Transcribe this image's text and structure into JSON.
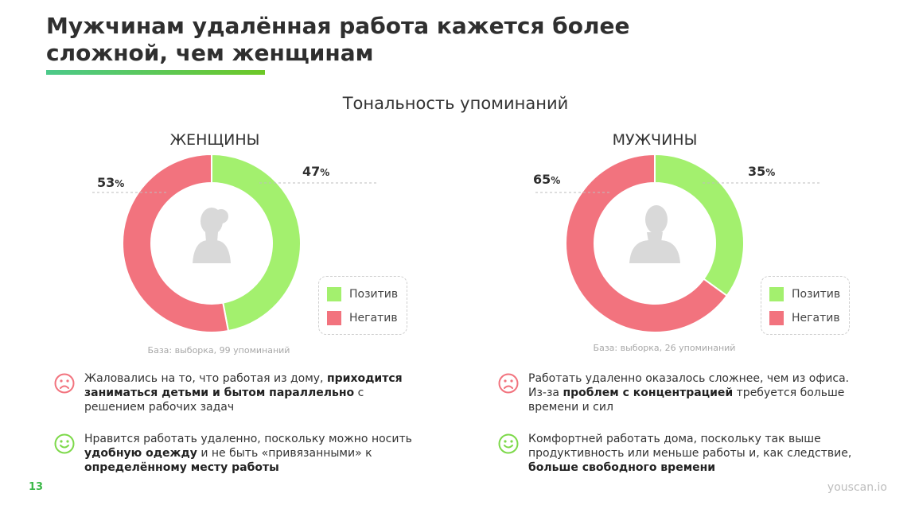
{
  "title": "Мужчинам удалённая работа кажется более сложной, чем женщинам",
  "chart_heading": "Тональность упоминаний",
  "colors": {
    "positive": "#a3f06e",
    "negative": "#f2737e",
    "accent": "#3db84a"
  },
  "chart_data": [
    {
      "type": "pie",
      "title": "ЖЕНЩИНЫ",
      "categories": [
        "Позитив",
        "Негатив"
      ],
      "values": [
        47,
        53
      ],
      "labels": [
        "47%",
        "53%"
      ],
      "legend": [
        "Позитив",
        "Негатив"
      ],
      "legend_placement": "right",
      "note": "База: выборка, 99 упоминаний"
    },
    {
      "type": "pie",
      "title": "МУЖЧИНЫ",
      "categories": [
        "Позитив",
        "Негатив"
      ],
      "values": [
        35,
        65
      ],
      "labels": [
        "35%",
        "65%"
      ],
      "legend": [
        "Позитив",
        "Негатив"
      ],
      "legend_placement": "right",
      "note": "База: выборка, 26 упоминаний"
    }
  ],
  "women": {
    "title": "ЖЕНЩИНЫ",
    "pos_num": "47",
    "neg_num": "53",
    "pct_sign": "%",
    "legend_pos": "Позитив",
    "legend_neg": "Негатив",
    "note": "База: выборка, 99 упоминаний",
    "negative_quote": {
      "icon": "sad-face-icon",
      "p1": "Жаловались на то, что работая из дому, ",
      "b1": "приходится заниматься детьми и бытом параллельно",
      "p2": " с решением рабочих задач"
    },
    "positive_quote": {
      "icon": "smile-face-icon",
      "p1": "Нравится работать удаленно, поскольку можно носить ",
      "b1": "удобную одежду",
      "p2": " и не быть «привязанными» к ",
      "b2": "определённому месту работы"
    }
  },
  "men": {
    "title": "МУЖЧИНЫ",
    "pos_num": "35",
    "neg_num": "65",
    "pct_sign": "%",
    "legend_pos": "Позитив",
    "legend_neg": "Негатив",
    "note": "База: выборка, 26 упоминаний",
    "negative_quote": {
      "icon": "sad-face-icon",
      "p1": "Работать удаленно оказалось сложнее, чем из офиса. Из-за ",
      "b1": "проблем с концентрацией",
      "p2": " требуется больше времени и сил"
    },
    "positive_quote": {
      "icon": "smile-face-icon",
      "p1": "Комфортней работать дома, поскольку так выше продуктивность или меньше работы и, как следствие, ",
      "b1": "больше свободного времени"
    }
  },
  "footer": {
    "page": "13",
    "brand": "youscan.io"
  }
}
